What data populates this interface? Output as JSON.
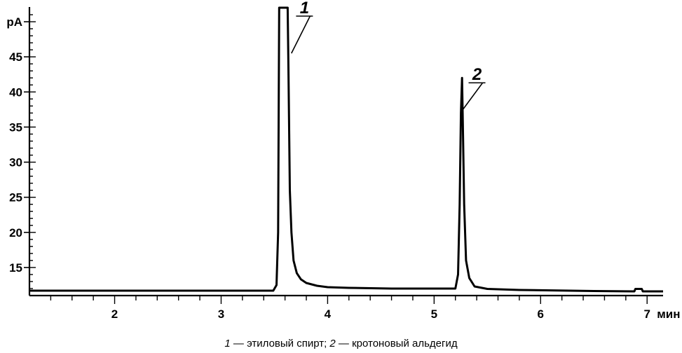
{
  "chart_data": {
    "type": "line",
    "title": "",
    "xlabel": "",
    "ylabel": "",
    "y_unit": "pA",
    "x_unit": "мин",
    "xlim": [
      1.2,
      7.15
    ],
    "ylim": [
      11,
      51.5
    ],
    "x_ticks": [
      2,
      3,
      4,
      5,
      6,
      7
    ],
    "x_tick_labels": [
      "2",
      "3",
      "4",
      "5",
      "6",
      "7 мин"
    ],
    "y_ticks": [
      15,
      20,
      25,
      30,
      35,
      40,
      45,
      50
    ],
    "y_tick_labels": [
      "15",
      "20",
      "25",
      "30",
      "35",
      "40",
      "45",
      "pA"
    ],
    "grid": false,
    "series": [
      {
        "points": [
          [
            1.2,
            11.7
          ],
          [
            3.49,
            11.7
          ],
          [
            3.52,
            12.5
          ],
          [
            3.535,
            20
          ],
          [
            3.545,
            52
          ],
          [
            3.6,
            52
          ],
          [
            3.625,
            52
          ],
          [
            3.632,
            43.5
          ],
          [
            3.645,
            26
          ],
          [
            3.66,
            20
          ],
          [
            3.68,
            16
          ],
          [
            3.71,
            14.2
          ],
          [
            3.75,
            13.3
          ],
          [
            3.8,
            12.8
          ],
          [
            3.9,
            12.4
          ],
          [
            4.0,
            12.2
          ],
          [
            4.2,
            12.1
          ],
          [
            4.6,
            12.0
          ],
          [
            5.2,
            12.0
          ],
          [
            5.225,
            14
          ],
          [
            5.24,
            24
          ],
          [
            5.252,
            37
          ],
          [
            5.262,
            42
          ],
          [
            5.27,
            35
          ],
          [
            5.282,
            24
          ],
          [
            5.3,
            16
          ],
          [
            5.33,
            13.5
          ],
          [
            5.38,
            12.3
          ],
          [
            5.5,
            11.95
          ],
          [
            5.8,
            11.8
          ],
          [
            6.5,
            11.65
          ],
          [
            6.88,
            11.6
          ],
          [
            6.89,
            11.95
          ],
          [
            6.95,
            11.95
          ],
          [
            6.96,
            11.6
          ],
          [
            7.15,
            11.6
          ]
        ]
      }
    ],
    "annotations": [
      {
        "text": "1",
        "x": 3.66,
        "y": 45.5,
        "label_x": 3.73,
        "label_y": 51
      },
      {
        "text": "2",
        "x": 5.27,
        "y": 37.5,
        "label_x": 5.35,
        "label_y": 41.5
      }
    ]
  },
  "caption": {
    "num1": "1",
    "text1": " — этиловый спирт; ",
    "num2": "2",
    "text2": " — кротоновый альдегид"
  }
}
